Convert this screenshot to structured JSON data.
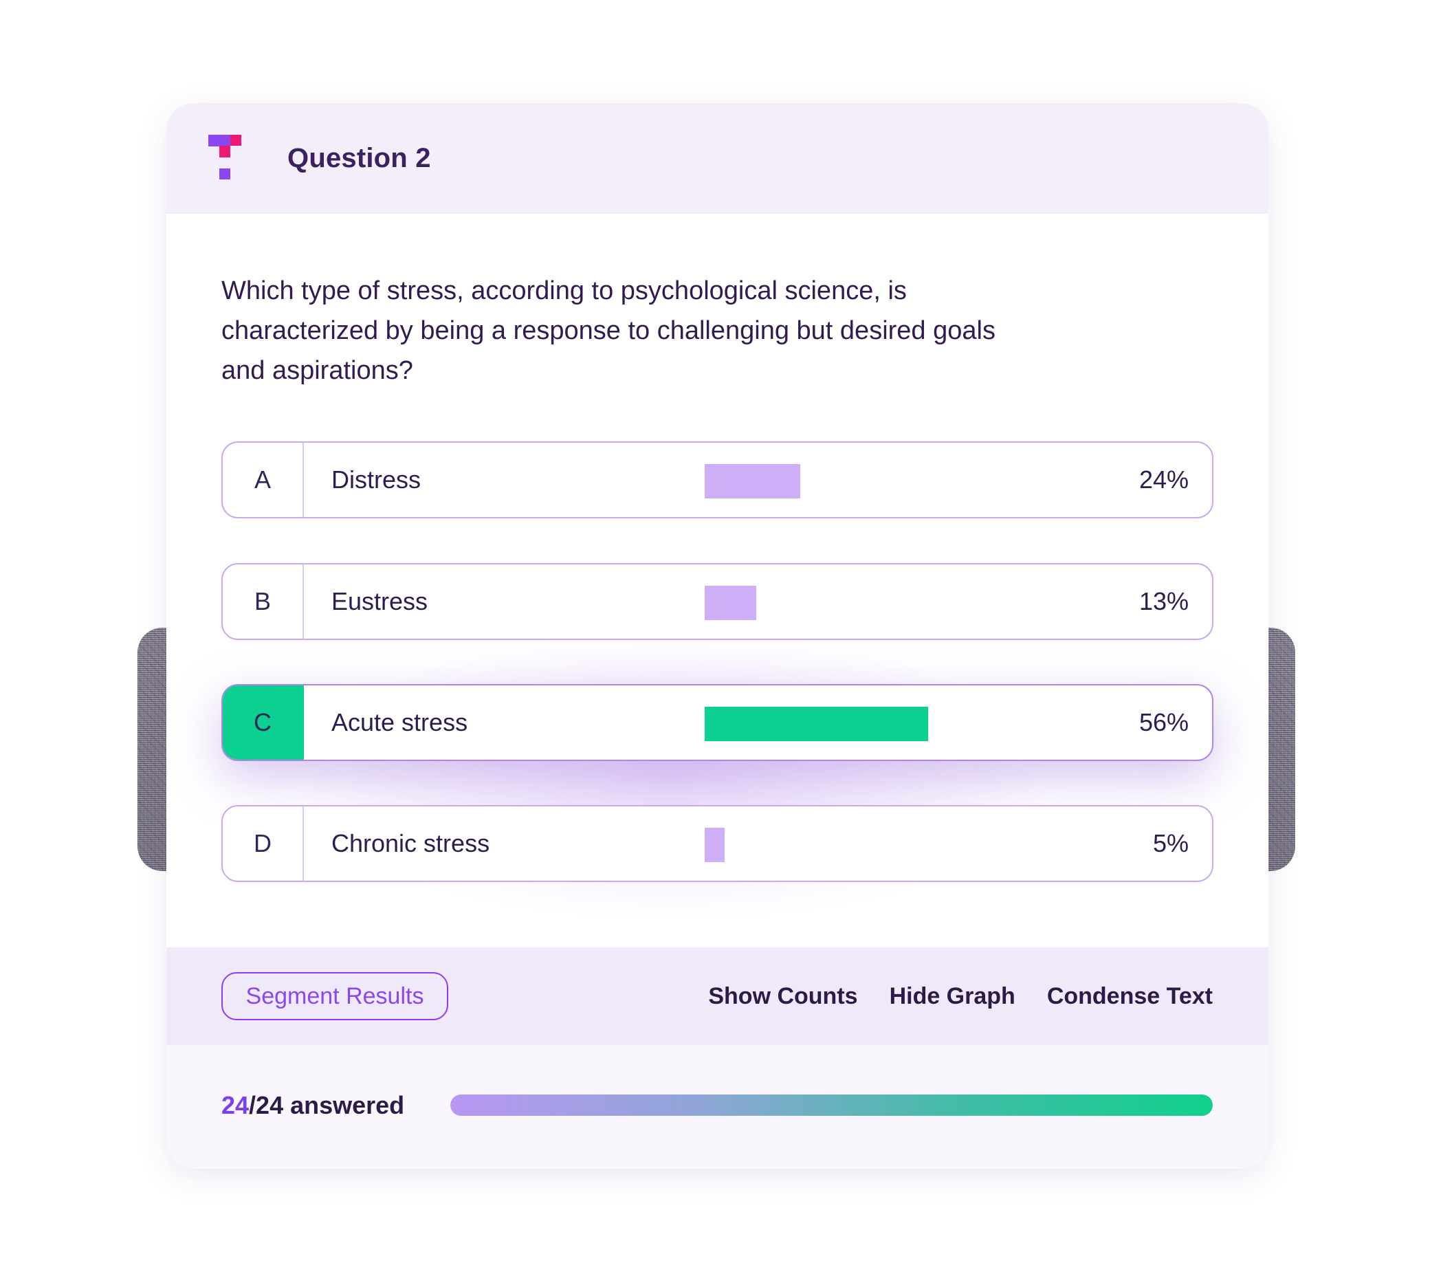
{
  "header": {
    "title": "Question 2"
  },
  "question": {
    "text": "Which type of stress, according to psychological science, is characterized by being a response to challenging but desired goals and aspirations?"
  },
  "answers": [
    {
      "letter": "A",
      "label": "Distress",
      "percent": "24%",
      "value": 24,
      "selected": false
    },
    {
      "letter": "B",
      "label": "Eustress",
      "percent": "13%",
      "value": 13,
      "selected": false
    },
    {
      "letter": "C",
      "label": "Acute stress",
      "percent": "56%",
      "value": 56,
      "selected": true
    },
    {
      "letter": "D",
      "label": "Chronic stress",
      "percent": "5%",
      "value": 5,
      "selected": false
    }
  ],
  "toolbar": {
    "segment_results": "Segment Results",
    "show_counts": "Show Counts",
    "hide_graph": "Hide Graph",
    "condense_text": "Condense Text"
  },
  "footer": {
    "answered_highlight": "24",
    "answered_rest": "/24 answered",
    "progress_percent": 100
  },
  "colors": {
    "brand_purple": "#8c46f0",
    "brand_pink": "#ed1874",
    "accent_purple": "#7a3ff2",
    "bar_purple": "#cdaef7",
    "selected_green": "#0bd092",
    "row_border": "#c9a9f3",
    "header_bg": "#f4eefb",
    "toolbar_bg": "#f0e9f9",
    "bottom_bg": "#f9f6fd",
    "text_dark": "#2e1a4e"
  },
  "chart_data": {
    "type": "bar",
    "title": "Question 2 answer distribution",
    "categories": [
      "Distress",
      "Eustress",
      "Acute stress",
      "Chronic stress"
    ],
    "values": [
      24,
      13,
      56,
      5
    ],
    "unit": "%",
    "highlighted_category": "Acute stress"
  }
}
